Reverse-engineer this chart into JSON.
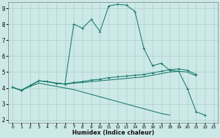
{
  "xlabel": "Humidex (Indice chaleur)",
  "bg_color": "#cce9e7",
  "grid_color": "#aaccca",
  "line_color": "#1a7a6e",
  "xlim": [
    -0.5,
    23.5
  ],
  "ylim": [
    1.8,
    9.4
  ],
  "xticks": [
    0,
    1,
    2,
    3,
    4,
    5,
    6,
    7,
    8,
    9,
    10,
    11,
    12,
    13,
    14,
    15,
    16,
    17,
    18,
    19,
    20,
    21,
    22,
    23
  ],
  "yticks": [
    2,
    3,
    4,
    5,
    6,
    7,
    8,
    9
  ],
  "line1_x": [
    0,
    1,
    2,
    3,
    4,
    5,
    6,
    7,
    8,
    9,
    10,
    11,
    12,
    13,
    14,
    15,
    16,
    17,
    18,
    19,
    20,
    21,
    22
  ],
  "line1_y": [
    4.05,
    3.85,
    4.15,
    4.45,
    4.4,
    4.3,
    4.25,
    8.0,
    7.75,
    8.3,
    7.55,
    9.15,
    9.25,
    9.2,
    8.8,
    6.5,
    5.4,
    5.55,
    5.1,
    5.05,
    3.95,
    2.5,
    2.3
  ],
  "line2_x": [
    0,
    1,
    2,
    3,
    4,
    5,
    6,
    7,
    8,
    9,
    10,
    11,
    12,
    13,
    14,
    15,
    16,
    17,
    18,
    19,
    20,
    21
  ],
  "line2_y": [
    4.05,
    3.85,
    4.15,
    4.45,
    4.4,
    4.3,
    4.25,
    4.35,
    4.4,
    4.5,
    4.55,
    4.65,
    4.7,
    4.75,
    4.8,
    4.85,
    4.95,
    5.05,
    5.15,
    5.2,
    5.1,
    4.85
  ],
  "line3_x": [
    0,
    1,
    2,
    3,
    4,
    5,
    6,
    7,
    8,
    9,
    10,
    11,
    12,
    13,
    14,
    15,
    16,
    17,
    18,
    19,
    20,
    21
  ],
  "line3_y": [
    4.05,
    3.85,
    4.15,
    4.45,
    4.4,
    4.3,
    4.25,
    4.3,
    4.35,
    4.4,
    4.45,
    4.5,
    4.55,
    4.6,
    4.65,
    4.7,
    4.8,
    4.9,
    5.0,
    5.05,
    5.0,
    4.75
  ],
  "line4_x": [
    0,
    1,
    2,
    3,
    4,
    5,
    6,
    7,
    8,
    9,
    10,
    11,
    12,
    13,
    14,
    15,
    16,
    17,
    18
  ],
  "line4_y": [
    4.05,
    3.85,
    4.1,
    4.3,
    4.2,
    4.1,
    4.0,
    3.9,
    3.75,
    3.6,
    3.45,
    3.3,
    3.15,
    3.0,
    2.85,
    2.7,
    2.55,
    2.4,
    2.3
  ]
}
